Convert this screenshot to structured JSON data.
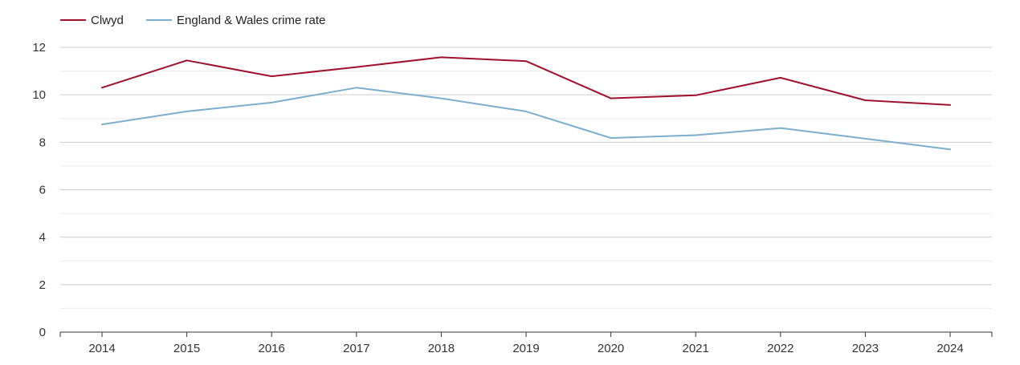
{
  "chart_data": {
    "type": "line",
    "title": "",
    "xlabel": "",
    "ylabel": "",
    "categories": [
      "2014",
      "2015",
      "2016",
      "2017",
      "2018",
      "2019",
      "2020",
      "2021",
      "2022",
      "2023",
      "2024"
    ],
    "ylim": [
      0,
      12
    ],
    "yticks": [
      "0",
      "2",
      "4",
      "6",
      "8",
      "10",
      "12"
    ],
    "grid": true,
    "legend_position": "top-left",
    "series": [
      {
        "name": "Clwyd",
        "color": "#a0112e",
        "values": [
          10.3,
          11.45,
          10.78,
          11.17,
          11.58,
          11.42,
          9.85,
          9.98,
          10.72,
          9.77,
          9.57
        ]
      },
      {
        "name": "England & Wales crime rate",
        "color": "#7aafd0",
        "values": [
          8.75,
          9.3,
          9.67,
          10.3,
          9.85,
          9.3,
          8.18,
          8.3,
          8.6,
          8.15,
          7.7
        ]
      }
    ]
  }
}
